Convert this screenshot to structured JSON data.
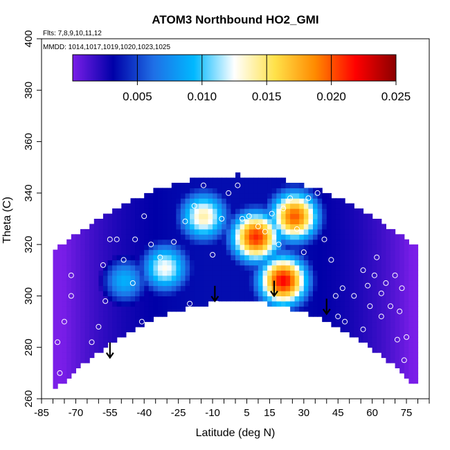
{
  "chart_data": {
    "type": "heatmap",
    "title": "ATOM3 Northbound HO2_GMI",
    "flights_note": "Flts: 7,8,9,10,11,12",
    "dates_note": "MMDD: 1014,1017,1019,1020,1023,1025",
    "xlabel": "Latitude (deg N)",
    "ylabel": "Theta (C)",
    "xlim": [
      -85,
      85
    ],
    "ylim": [
      260,
      400
    ],
    "x_ticks": [
      -85,
      -70,
      -55,
      -40,
      -25,
      -10,
      5,
      15,
      30,
      45,
      60,
      75
    ],
    "y_ticks": [
      260,
      280,
      300,
      320,
      340,
      360,
      380,
      400
    ],
    "colorbar": {
      "range": [
        0,
        0.025
      ],
      "ticks": [
        "0.005",
        "0.010",
        "0.015",
        "0.020",
        "0.025"
      ],
      "tick_values": [
        0.005,
        0.01,
        0.015,
        0.02,
        0.025
      ],
      "colors": [
        "#7a1ee8",
        "#0000a8",
        "#1f6fe6",
        "#00b8ff",
        "#ffffff",
        "#ffe24a",
        "#ff8a00",
        "#ff0000",
        "#8b0000"
      ]
    },
    "field_peaks": [
      {
        "lat": -15,
        "theta": 330,
        "value": 0.014
      },
      {
        "lat": -32,
        "theta": 310,
        "value": 0.013
      },
      {
        "lat": 8,
        "theta": 322,
        "value": 0.021
      },
      {
        "lat": 20,
        "theta": 305,
        "value": 0.022
      },
      {
        "lat": 25,
        "theta": 330,
        "value": 0.02
      },
      {
        "lat": -50,
        "theta": 305,
        "value": 0.01
      }
    ],
    "tropopause_arrows": [
      {
        "lat": -55,
        "theta": 276
      },
      {
        "lat": -9,
        "theta": 298
      },
      {
        "lat": 17,
        "theta": 300
      },
      {
        "lat": 40,
        "theta": 293
      }
    ],
    "sample_points": [
      [
        -78,
        260
      ],
      [
        -77,
        270
      ],
      [
        -78,
        282
      ],
      [
        -75,
        290
      ],
      [
        -72,
        300
      ],
      [
        -72,
        308
      ],
      [
        -67,
        270
      ],
      [
        -63,
        282
      ],
      [
        -60,
        288
      ],
      [
        -57,
        298
      ],
      [
        -58,
        312
      ],
      [
        -55,
        322
      ],
      [
        -52,
        322
      ],
      [
        -49,
        314
      ],
      [
        -45,
        305
      ],
      [
        -44,
        322
      ],
      [
        -40,
        331
      ],
      [
        -37,
        320
      ],
      [
        -33,
        315
      ],
      [
        -27,
        321
      ],
      [
        -22,
        329
      ],
      [
        -18,
        335
      ],
      [
        -14,
        343
      ],
      [
        -10,
        316
      ],
      [
        -6,
        330
      ],
      [
        -3,
        340
      ],
      [
        -8,
        297
      ],
      [
        -24,
        291
      ],
      [
        -20,
        297
      ],
      [
        1,
        343
      ],
      [
        3,
        330
      ],
      [
        6,
        331
      ],
      [
        10,
        327
      ],
      [
        13,
        325
      ],
      [
        16,
        332
      ],
      [
        19,
        320
      ],
      [
        21,
        334
      ],
      [
        24,
        338
      ],
      [
        27,
        326
      ],
      [
        30,
        317
      ],
      [
        32,
        338
      ],
      [
        36,
        340
      ],
      [
        39,
        322
      ],
      [
        42,
        314
      ],
      [
        44,
        300
      ],
      [
        47,
        303
      ],
      [
        45,
        292
      ],
      [
        48,
        290
      ],
      [
        52,
        300
      ],
      [
        56,
        287
      ],
      [
        56,
        310
      ],
      [
        58,
        304
      ],
      [
        59,
        296
      ],
      [
        61,
        308
      ],
      [
        62,
        315
      ],
      [
        64,
        301
      ],
      [
        64,
        292
      ],
      [
        66,
        305
      ],
      [
        68,
        296
      ],
      [
        70,
        308
      ],
      [
        72,
        294
      ],
      [
        73,
        303
      ],
      [
        71,
        283
      ],
      [
        75,
        284
      ],
      [
        74,
        275
      ],
      [
        74,
        261
      ],
      [
        -41,
        290
      ],
      [
        -39,
        287
      ]
    ]
  }
}
